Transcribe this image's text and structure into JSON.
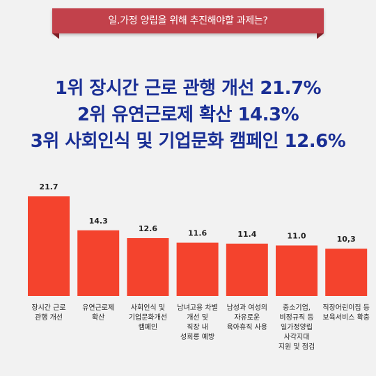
{
  "header": {
    "title": "일.가정 양립을 위해 추진해야할 과제는?"
  },
  "headlines": [
    "1위 장시간 근로 관행 개선 21.7%",
    "2위 유연근로제 확산 14.3%",
    "3위 사회인식 및 기업문화 캠페인 12.6%"
  ],
  "colors": {
    "bar": "#f4432d",
    "banner": "#c2414b",
    "headline": "#1a2f95",
    "background": "#f2f2f2"
  },
  "chart_data": {
    "type": "bar",
    "title": "",
    "xlabel": "",
    "ylabel": "",
    "ylim": [
      0,
      21.7
    ],
    "grid": false,
    "categories": [
      [
        "장시간 근로",
        "관행 개선"
      ],
      [
        "유연근로제",
        "확산"
      ],
      [
        "사회인식 및",
        "기업문화개선",
        "캠페인"
      ],
      [
        "남녀고용 차별",
        "개선 및",
        "직장 내",
        "성희롱 예방"
      ],
      [
        "남성과 여성의",
        "자유로운",
        "육아휴직 사용"
      ],
      [
        "중소기업,",
        "비정규직 등",
        "일가정양립",
        "사각지대",
        "지원 및 점검"
      ],
      [
        "직장어린이집 등",
        "보육서비스 확충"
      ]
    ],
    "values": [
      21.7,
      14.3,
      12.6,
      11.6,
      11.4,
      11.0,
      10.3
    ],
    "value_labels": [
      "21.7",
      "14.3",
      "12.6",
      "11.6",
      "11.4",
      "11.0",
      "10,3"
    ]
  }
}
